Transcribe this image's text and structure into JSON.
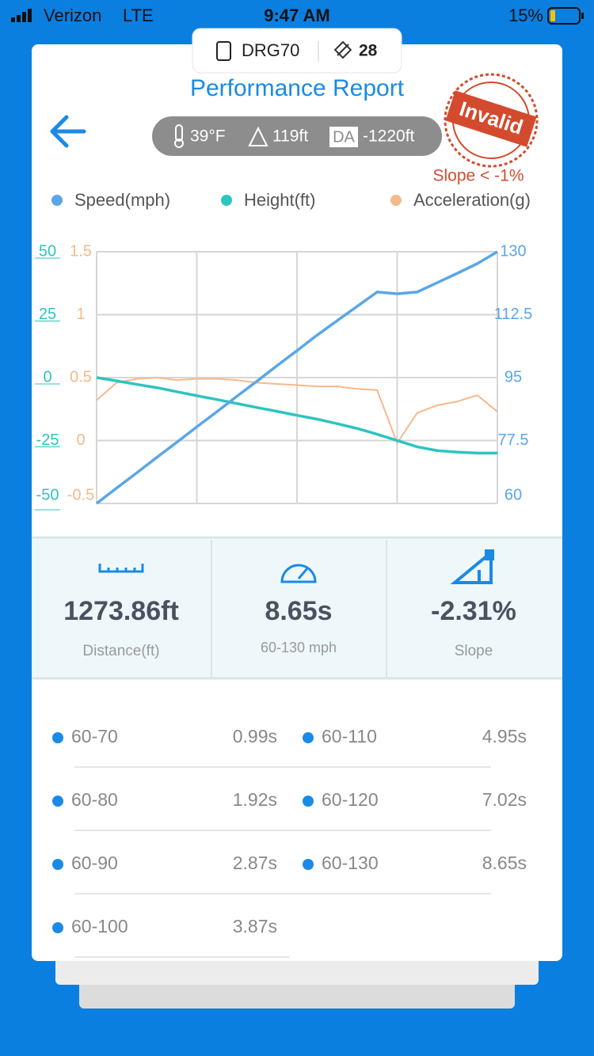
{
  "status_bar": {
    "carrier": "Verizon",
    "network": "LTE",
    "time": "9:47 AM",
    "battery": "15%"
  },
  "device": {
    "name": "DRG70",
    "satellites": "28"
  },
  "header": {
    "title": "Performance Report"
  },
  "conditions": {
    "temperature": "39°F",
    "altitude": "119ft",
    "da_label": "DA",
    "density_altitude": "-1220ft"
  },
  "stamp": {
    "text": "Invalid",
    "note": "Slope < -1%"
  },
  "chart_data": {
    "type": "line",
    "series": [
      {
        "name": "Speed(mph)",
        "color": "#5aa6e8",
        "axis": "y2",
        "values": [
          60,
          64.3,
          68.5,
          72.8,
          77,
          81.3,
          85.5,
          89.8,
          94,
          98.3,
          102.5,
          106.8,
          110.8,
          114.8,
          118.8,
          118.3,
          118.8,
          121.4,
          124,
          126.7,
          130
        ]
      },
      {
        "name": "Height(ft)",
        "color": "#2ec4c0",
        "axis": "y",
        "values": [
          0,
          -1.3,
          -2.7,
          -4,
          -5.6,
          -7.2,
          -8.7,
          -10.3,
          -11.9,
          -13.4,
          -15,
          -16.5,
          -18.3,
          -20.2,
          -22.5,
          -25,
          -27.5,
          -29,
          -29.6,
          -30,
          -30
        ]
      },
      {
        "name": "Acceleration(g)",
        "color": "#f5b98a",
        "axis": "y3",
        "values": [
          0.32,
          0.46,
          0.49,
          0.5,
          0.48,
          0.49,
          0.49,
          0.48,
          0.46,
          0.45,
          0.44,
          0.43,
          0.43,
          0.41,
          0.4,
          -0.02,
          0.22,
          0.28,
          0.31,
          0.36,
          0.23
        ]
      }
    ],
    "ylim": [
      -50,
      50
    ],
    "yticks": [
      50,
      25,
      0,
      -25,
      -50
    ],
    "y3lim": [
      -0.5,
      1.5
    ],
    "y3ticks": [
      1.5,
      1,
      0.5,
      0,
      -0.5
    ],
    "y2lim": [
      60,
      130
    ],
    "y2ticks": [
      130,
      112.5,
      95,
      77.5,
      60
    ],
    "grid": true
  },
  "stats": [
    {
      "value": "1273.86ft",
      "label": "Distance(ft)"
    },
    {
      "value": "8.65s",
      "label": "60-130 mph"
    },
    {
      "value": "-2.31%",
      "label": "Slope"
    }
  ],
  "splits": [
    {
      "range": "60-70",
      "time": "0.99s"
    },
    {
      "range": "60-110",
      "time": "4.95s"
    },
    {
      "range": "60-80",
      "time": "1.92s"
    },
    {
      "range": "60-120",
      "time": "7.02s"
    },
    {
      "range": "60-90",
      "time": "2.87s"
    },
    {
      "range": "60-130",
      "time": "8.65s"
    },
    {
      "range": "60-100",
      "time": "3.87s"
    }
  ]
}
